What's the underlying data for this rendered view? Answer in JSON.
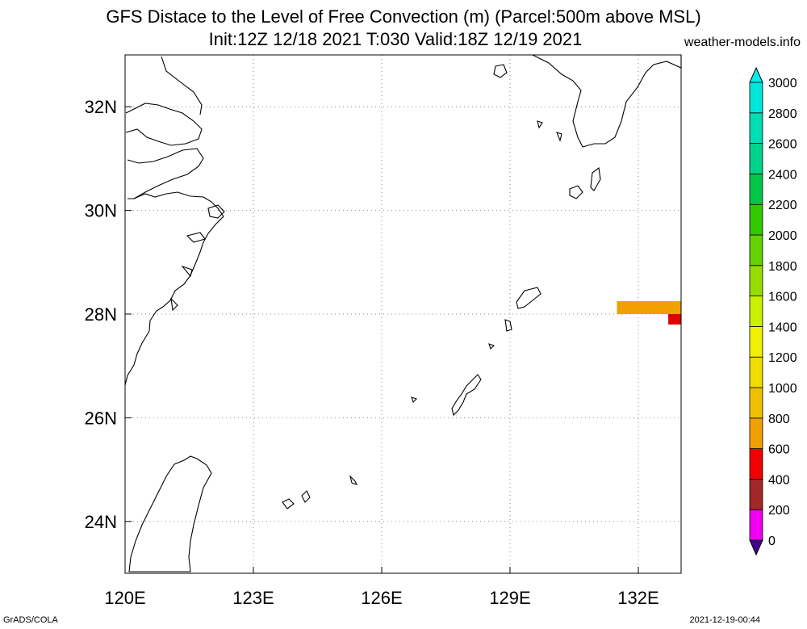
{
  "title": {
    "line1": "GFS Distace to the Level of Free Convection (m) (Parcel:500m above MSL)",
    "line2": "Init:12Z 12/18 2021 T:030 Valid:18Z 12/19 2021",
    "site": "weather-models.info"
  },
  "footer": {
    "left": "GrADS/COLA",
    "right": "2021-12-19-00:44"
  },
  "map": {
    "lon_range": [
      120,
      133
    ],
    "lat_range": [
      23,
      33
    ],
    "lon_ticks": [
      {
        "value": 120,
        "label": "120E"
      },
      {
        "value": 123,
        "label": "123E"
      },
      {
        "value": 126,
        "label": "126E"
      },
      {
        "value": 129,
        "label": "129E"
      },
      {
        "value": 132,
        "label": "132E"
      }
    ],
    "lat_ticks": [
      {
        "value": 24,
        "label": "24N"
      },
      {
        "value": 26,
        "label": "26N"
      },
      {
        "value": 28,
        "label": "28N"
      },
      {
        "value": 30,
        "label": "30N"
      },
      {
        "value": 32,
        "label": "32N"
      }
    ],
    "grid": true,
    "coastline_color": "#000000",
    "shaded_regions": [
      {
        "lon": [
          131.5,
          133
        ],
        "lat": [
          28.0,
          28.25
        ],
        "color": "#f0a000"
      },
      {
        "lon": [
          132.7,
          133
        ],
        "lat": [
          27.8,
          28.0
        ],
        "color": "#e00000"
      }
    ]
  },
  "colorbar": {
    "levels": [
      "0",
      "200",
      "400",
      "600",
      "800",
      "1000",
      "1200",
      "1400",
      "1600",
      "1800",
      "2000",
      "2200",
      "2400",
      "2600",
      "2800",
      "3000"
    ],
    "colors": [
      "#400090",
      "#f000f0",
      "#a02828",
      "#f00000",
      "#f0a000",
      "#f0c000",
      "#f0dc00",
      "#f0f000",
      "#c8f000",
      "#96dc00",
      "#64d200",
      "#32c800",
      "#00c846",
      "#00d28c",
      "#00dcb4",
      "#00e6dc",
      "#00f0f0"
    ]
  }
}
